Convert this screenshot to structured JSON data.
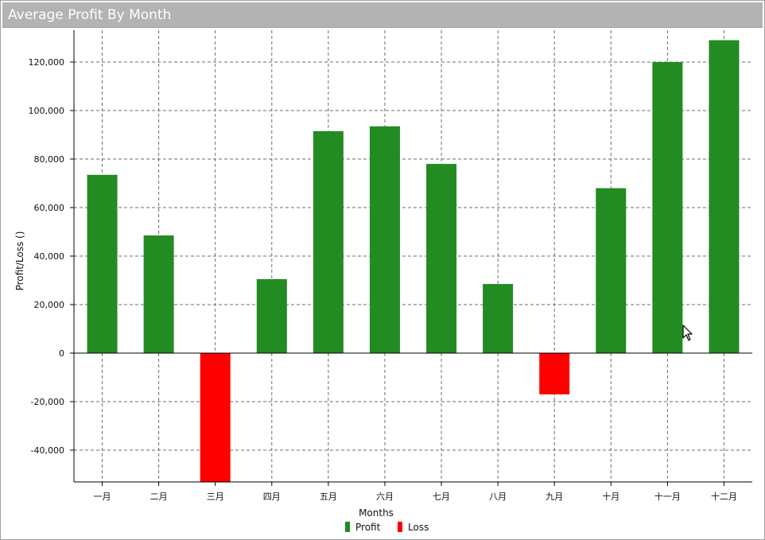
{
  "title": "Average Profit By Month",
  "chart_data": {
    "type": "bar",
    "title": "Average Profit By Month",
    "xlabel": "Months",
    "ylabel": "Profit/Loss ()",
    "categories": [
      "一月",
      "二月",
      "三月",
      "四月",
      "五月",
      "六月",
      "七月",
      "八月",
      "九月",
      "十月",
      "十一月",
      "十二月"
    ],
    "values": [
      73500,
      48500,
      -53000,
      30500,
      91500,
      93500,
      78000,
      28500,
      -17000,
      68000,
      120000,
      129000
    ],
    "ylim": [
      -53000,
      130000
    ],
    "yticks": [
      -40000,
      -20000,
      0,
      20000,
      40000,
      60000,
      80000,
      100000,
      120000
    ],
    "ytick_labels": [
      "-40,000",
      "-20,000",
      "0",
      "20,000",
      "40,000",
      "60,000",
      "80,000",
      "100,000",
      "120,000"
    ],
    "grid": true,
    "legend_position": "bottom",
    "series": [
      {
        "name": "Profit",
        "color": "#228b22"
      },
      {
        "name": "Loss",
        "color": "#ff0000"
      }
    ]
  }
}
